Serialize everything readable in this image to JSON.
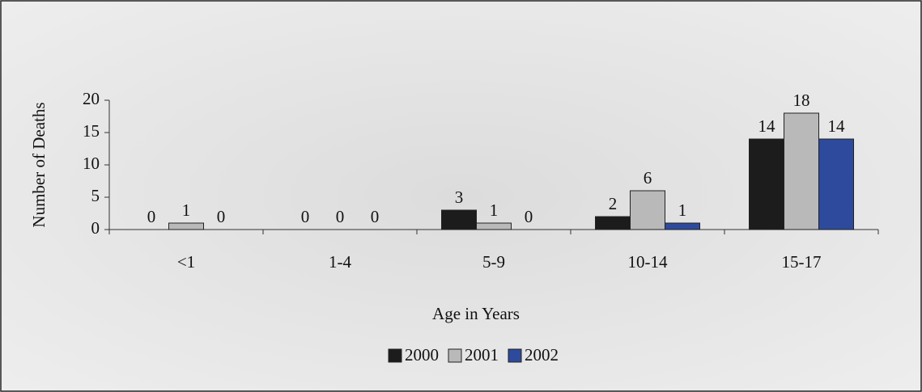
{
  "chart_data": {
    "type": "bar",
    "categories": [
      "<1",
      "1-4",
      "5-9",
      "10-14",
      "15-17"
    ],
    "series": [
      {
        "name": "2000",
        "color": "#1c1c1c",
        "values": [
          0,
          0,
          3,
          2,
          14
        ]
      },
      {
        "name": "2001",
        "color": "#b9b9b9",
        "values": [
          1,
          0,
          1,
          6,
          18
        ]
      },
      {
        "name": "2002",
        "color": "#2e4a9c",
        "values": [
          0,
          0,
          0,
          1,
          14
        ]
      }
    ],
    "y_label": "Number of Deaths",
    "x_label": "Age in Years",
    "ylim": [
      0,
      20
    ],
    "yticks": [
      0,
      5,
      10,
      15,
      20
    ]
  }
}
